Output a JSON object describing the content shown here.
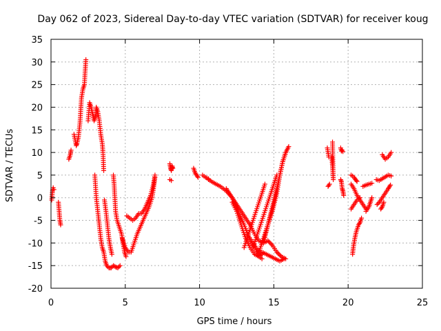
{
  "chart_data": {
    "type": "scatter",
    "title": "Day 062 of 2023, Sidereal Day-to-day VTEC variation (SDTVAR) for receiver koug",
    "xlabel": "GPS time / hours",
    "ylabel": "SDTVAR / TECUs",
    "xlim": [
      0,
      25
    ],
    "ylim": [
      -20,
      35
    ],
    "xticks": [
      0,
      5,
      10,
      15,
      20,
      25
    ],
    "yticks": [
      -20,
      -15,
      -10,
      -5,
      0,
      5,
      10,
      15,
      20,
      25,
      30,
      35
    ],
    "grid": true,
    "marker": "+",
    "color": "#ff0000",
    "series": [
      {
        "name": "SDTVAR",
        "tracks": [
          [
            [
              0.05,
              -0.5
            ],
            [
              0.1,
              1.5
            ],
            [
              0.15,
              2.2
            ],
            [
              0.2,
              1.8
            ]
          ],
          [
            [
              0.5,
              -1
            ],
            [
              0.55,
              -3
            ],
            [
              0.6,
              -5
            ],
            [
              0.65,
              -6
            ]
          ],
          [
            [
              1.2,
              8.5
            ],
            [
              1.3,
              9.5
            ],
            [
              1.35,
              10.5
            ]
          ],
          [
            [
              1.55,
              14
            ],
            [
              1.7,
              11.5
            ],
            [
              1.75,
              12
            ],
            [
              1.85,
              13.5
            ],
            [
              1.95,
              16.5
            ],
            [
              2.05,
              22
            ],
            [
              2.15,
              24
            ],
            [
              2.25,
              25
            ],
            [
              2.3,
              28
            ],
            [
              2.35,
              30.5
            ]
          ],
          [
            [
              2.5,
              17
            ],
            [
              2.6,
              21
            ],
            [
              2.7,
              20
            ],
            [
              2.8,
              18.5
            ],
            [
              2.9,
              17
            ],
            [
              3.0,
              18
            ],
            [
              3.05,
              20
            ],
            [
              3.15,
              19
            ],
            [
              3.25,
              17
            ],
            [
              3.35,
              14
            ],
            [
              3.45,
              12
            ],
            [
              3.5,
              10
            ],
            [
              3.55,
              6
            ]
          ],
          [
            [
              2.95,
              5
            ],
            [
              3.05,
              0
            ],
            [
              3.15,
              -3
            ],
            [
              3.25,
              -6
            ],
            [
              3.35,
              -9
            ],
            [
              3.45,
              -11
            ],
            [
              3.55,
              -12
            ],
            [
              3.65,
              -14
            ],
            [
              3.75,
              -15
            ],
            [
              3.9,
              -15.5
            ],
            [
              4.05,
              -15.5
            ],
            [
              4.2,
              -15
            ],
            [
              4.35,
              -15.3
            ],
            [
              4.5,
              -15.5
            ],
            [
              4.65,
              -15
            ]
          ],
          [
            [
              3.6,
              -0.5
            ],
            [
              3.7,
              -3
            ],
            [
              3.8,
              -6
            ],
            [
              3.9,
              -9
            ],
            [
              4.0,
              -11
            ],
            [
              4.1,
              -12.5
            ]
          ],
          [
            [
              4.2,
              5
            ],
            [
              4.25,
              3
            ],
            [
              4.3,
              0
            ],
            [
              4.35,
              -3
            ],
            [
              4.45,
              -5
            ],
            [
              4.6,
              -6.5
            ],
            [
              4.75,
              -8
            ],
            [
              4.85,
              -10
            ],
            [
              4.95,
              -12
            ],
            [
              5.05,
              -13
            ]
          ],
          [
            [
              4.8,
              -9
            ],
            [
              5.0,
              -11
            ],
            [
              5.2,
              -12
            ],
            [
              5.4,
              -12
            ],
            [
              5.6,
              -10
            ],
            [
              5.8,
              -8
            ],
            [
              6.0,
              -6.5
            ],
            [
              6.2,
              -5
            ],
            [
              6.4,
              -3.5
            ],
            [
              6.6,
              -2
            ],
            [
              6.8,
              0
            ],
            [
              6.9,
              2
            ],
            [
              7.0,
              4.5
            ]
          ],
          [
            [
              5.1,
              -4
            ],
            [
              5.3,
              -4.5
            ],
            [
              5.5,
              -5
            ],
            [
              5.7,
              -4.5
            ],
            [
              5.9,
              -3.5
            ],
            [
              6.1,
              -3.5
            ],
            [
              6.3,
              -2.5
            ],
            [
              6.5,
              -1
            ],
            [
              6.7,
              0.5
            ],
            [
              6.9,
              3
            ],
            [
              7.0,
              5
            ]
          ],
          [
            [
              8.0,
              7.5
            ],
            [
              8.05,
              6.5
            ],
            [
              8.1,
              6
            ],
            [
              8.15,
              7
            ],
            [
              8.2,
              6.5
            ]
          ],
          [
            [
              8.0,
              4
            ],
            [
              8.1,
              3.8
            ]
          ],
          [
            [
              9.6,
              6.5
            ],
            [
              9.7,
              5.5
            ],
            [
              9.8,
              5
            ],
            [
              9.9,
              4.5
            ]
          ],
          [
            [
              10.2,
              5
            ],
            [
              10.4,
              4.5
            ],
            [
              10.6,
              4.2
            ]
          ],
          [
            [
              10.6,
              4
            ],
            [
              11.0,
              3.2
            ],
            [
              11.4,
              2.5
            ],
            [
              11.8,
              1.5
            ],
            [
              12.2,
              0
            ],
            [
              12.6,
              -2
            ],
            [
              13.0,
              -4
            ],
            [
              13.4,
              -6
            ],
            [
              13.7,
              -8
            ],
            [
              14.0,
              -9.5
            ],
            [
              14.3,
              -10
            ],
            [
              14.6,
              -9.5
            ],
            [
              14.9,
              -10.5
            ],
            [
              15.2,
              -12
            ],
            [
              15.5,
              -13
            ],
            [
              15.8,
              -13.5
            ]
          ],
          [
            [
              11.8,
              2
            ],
            [
              12.2,
              0
            ],
            [
              12.6,
              -3
            ],
            [
              13.0,
              -6
            ],
            [
              13.3,
              -8.5
            ],
            [
              13.6,
              -10
            ],
            [
              13.9,
              -11.5
            ],
            [
              14.2,
              -12.5
            ]
          ],
          [
            [
              12.2,
              -1
            ],
            [
              12.5,
              -3
            ],
            [
              12.8,
              -6
            ],
            [
              13.1,
              -9
            ],
            [
              13.4,
              -11
            ],
            [
              13.7,
              -12.5
            ],
            [
              14.0,
              -13
            ],
            [
              14.2,
              -12.5
            ]
          ],
          [
            [
              13.2,
              -8
            ],
            [
              13.5,
              -10
            ],
            [
              13.8,
              -11.5
            ],
            [
              14.0,
              -13
            ],
            [
              14.2,
              -13.5
            ]
          ],
          [
            [
              14.2,
              -12
            ],
            [
              14.5,
              -12.5
            ],
            [
              14.8,
              -13
            ],
            [
              15.1,
              -13.5
            ],
            [
              15.4,
              -14
            ],
            [
              15.7,
              -13.5
            ]
          ],
          [
            [
              13.0,
              -11
            ],
            [
              13.3,
              -8
            ],
            [
              13.6,
              -5
            ],
            [
              13.9,
              -2
            ],
            [
              14.2,
              1
            ],
            [
              14.4,
              3
            ]
          ],
          [
            [
              13.6,
              -11
            ],
            [
              13.9,
              -8
            ],
            [
              14.2,
              -5
            ],
            [
              14.5,
              -2
            ],
            [
              14.8,
              1
            ],
            [
              15.0,
              3
            ],
            [
              15.2,
              5
            ]
          ],
          [
            [
              14.0,
              -12
            ],
            [
              14.3,
              -9
            ],
            [
              14.6,
              -6
            ],
            [
              14.9,
              -3
            ],
            [
              15.2,
              1
            ],
            [
              15.4,
              5
            ],
            [
              15.6,
              8
            ],
            [
              15.8,
              10
            ]
          ],
          [
            [
              14.3,
              -10
            ],
            [
              14.6,
              -6
            ],
            [
              14.9,
              -2
            ],
            [
              15.2,
              2
            ],
            [
              15.4,
              5
            ],
            [
              15.6,
              8
            ],
            [
              15.8,
              10
            ],
            [
              16.0,
              11.3
            ]
          ],
          [
            [
              18.65,
              2.5
            ],
            [
              18.75,
              3
            ]
          ],
          [
            [
              18.6,
              11
            ],
            [
              18.7,
              9
            ]
          ],
          [
            [
              18.9,
              9
            ],
            [
              18.95,
              7
            ],
            [
              19.0,
              4
            ],
            [
              18.95,
              12.3
            ]
          ],
          [
            [
              19.5,
              11
            ],
            [
              19.55,
              10.3
            ],
            [
              19.6,
              10.5
            ],
            [
              19.65,
              10.2
            ]
          ],
          [
            [
              19.5,
              4
            ],
            [
              19.55,
              3.5
            ],
            [
              19.6,
              2
            ],
            [
              19.65,
              1.5
            ],
            [
              19.7,
              0.5
            ]
          ],
          [
            [
              20.2,
              5
            ],
            [
              20.3,
              4.8
            ],
            [
              20.4,
              4.5
            ],
            [
              20.5,
              4
            ],
            [
              20.6,
              3.6
            ]
          ],
          [
            [
              20.2,
              3
            ],
            [
              20.4,
              2
            ],
            [
              20.6,
              0.5
            ],
            [
              20.8,
              -0.5
            ],
            [
              21.0,
              -1.5
            ],
            [
              21.2,
              -2.5
            ]
          ],
          [
            [
              20.3,
              -12.5
            ],
            [
              20.35,
              -11
            ],
            [
              20.45,
              -9
            ],
            [
              20.55,
              -7.5
            ],
            [
              20.7,
              -6
            ],
            [
              20.8,
              -5.5
            ],
            [
              20.9,
              -4.5
            ]
          ],
          [
            [
              20.2,
              -2.5
            ],
            [
              20.4,
              -1.5
            ],
            [
              20.6,
              -0.5
            ],
            [
              20.8,
              0
            ]
          ],
          [
            [
              21.2,
              -3
            ],
            [
              21.4,
              -2
            ],
            [
              21.5,
              -1
            ],
            [
              21.6,
              0
            ]
          ],
          [
            [
              21.0,
              2.5
            ],
            [
              21.2,
              2.8
            ],
            [
              21.4,
              3
            ],
            [
              21.6,
              3.2
            ]
          ],
          [
            [
              21.9,
              4
            ],
            [
              22.1,
              3.8
            ],
            [
              22.3,
              4.2
            ],
            [
              22.5,
              4.6
            ],
            [
              22.7,
              5
            ],
            [
              22.9,
              4.8
            ]
          ],
          [
            [
              21.95,
              -1.5
            ],
            [
              22.1,
              -1
            ],
            [
              22.3,
              0
            ],
            [
              22.5,
              1
            ],
            [
              22.7,
              2
            ],
            [
              22.85,
              2.8
            ]
          ],
          [
            [
              22.3,
              9.5
            ],
            [
              22.5,
              8.5
            ],
            [
              22.7,
              9
            ],
            [
              22.9,
              10
            ]
          ],
          [
            [
              22.2,
              -2.5
            ],
            [
              22.3,
              -2
            ],
            [
              22.4,
              -1
            ]
          ]
        ]
      }
    ]
  }
}
